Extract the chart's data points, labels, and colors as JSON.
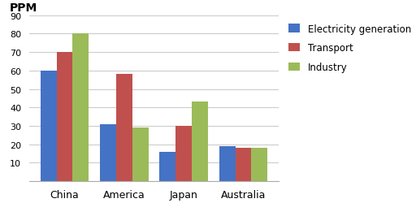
{
  "categories": [
    "China",
    "America",
    "Japan",
    "Australia"
  ],
  "series": {
    "Electricity generation": [
      60,
      31,
      16,
      19
    ],
    "Transport": [
      70,
      58,
      30,
      18
    ],
    "Industry": [
      80,
      29,
      43,
      18
    ]
  },
  "colors": {
    "Electricity generation": "#4472C4",
    "Transport": "#C0504D",
    "Industry": "#9BBB59"
  },
  "ylabel": "PPM",
  "ylim": [
    0,
    90
  ],
  "yticks": [
    0,
    10,
    20,
    30,
    40,
    50,
    60,
    70,
    80,
    90
  ],
  "legend_labels": [
    "Electricity generation",
    "Transport",
    "Industry"
  ],
  "background_color": "#FFFFFF",
  "grid_color": "#CCCCCC"
}
